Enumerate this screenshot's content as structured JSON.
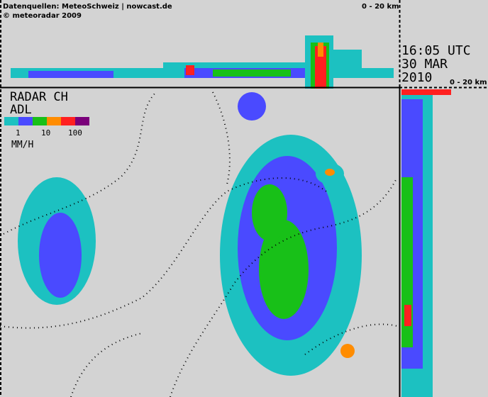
{
  "header": {
    "source": "Datenquellen: MeteoSchweiz | nowcast.de",
    "copyright": "© meteoradar 2009",
    "top_range": "0 - 20 km"
  },
  "timestamp": {
    "time": "16:05 UTC",
    "date": "30 MAR",
    "year": "2010"
  },
  "side_range": "0 - 20 km",
  "legend": {
    "title": "RADAR CH",
    "code": "ADL",
    "ticks": [
      "1",
      "10",
      "100"
    ],
    "unit": "MM/H"
  }
}
